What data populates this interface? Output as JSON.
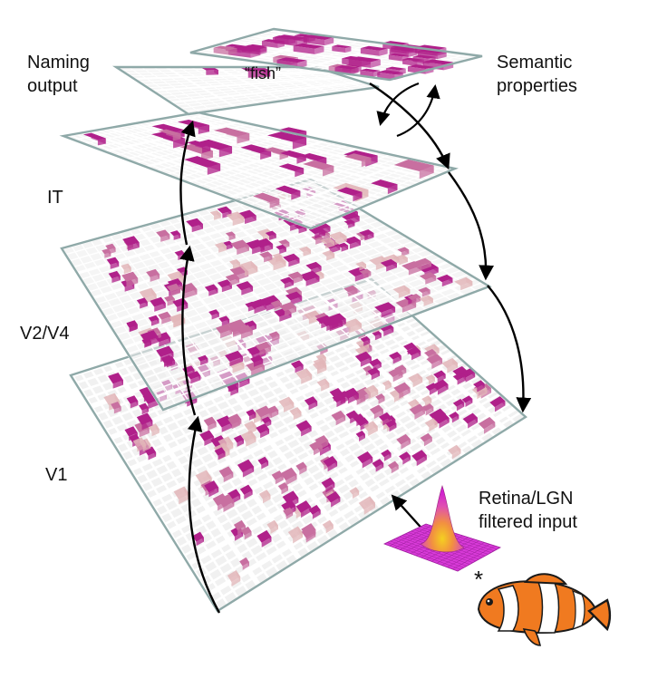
{
  "labels": {
    "naming_output": [
      "Naming",
      "output"
    ],
    "fish_word": "“fish”",
    "semantic": [
      "Semantic",
      "properties"
    ],
    "it": "IT",
    "v2v4": "V2/V4",
    "v1": "V1",
    "retina": [
      "Retina/LGN",
      "filtered input"
    ],
    "asterisk": "*"
  },
  "colors": {
    "plane_border": "#8fa9a8",
    "plane_fill": "#eeeeee",
    "grid_line": "#ffffff",
    "unit_active": "#b0208a",
    "unit_mid": "#c86fa0",
    "unit_faint": "#e2b5b8",
    "arrow": "#000000",
    "fish_orange": "#f07a20",
    "fish_white": "#ffffff",
    "fish_black": "#1a1a1a",
    "gaussian_peak": "#f2c020",
    "gaussian_base": "#e030c8"
  },
  "layers": [
    "Naming output",
    "Semantic properties",
    "IT",
    "V2/V4",
    "V1",
    "Retina/LGN filtered input"
  ],
  "icons": [
    "gaussian-surface-icon",
    "clownfish-icon"
  ]
}
